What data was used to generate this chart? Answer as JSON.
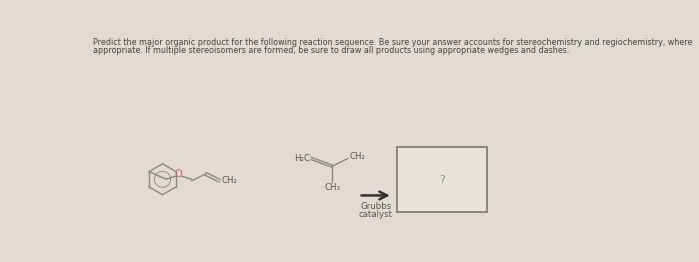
{
  "bg_color": "#e3dbd2",
  "text_color": "#555555",
  "title_line1": "Predict the major organic product for the following reaction sequence. Be sure your answer accounts for stereochemistry and regiochemistry, where",
  "title_line2": "appropriate. If multiple stereoisomers are formed, be sure to draw all products using appropriate wedges and dashes.",
  "question_mark": "?",
  "grubbs_line1": "Grubbs",
  "grubbs_line2": "catalyst",
  "box_color": "#777777",
  "arrow_color": "#333333",
  "mol_color": "#888888",
  "o_color": "#cc6666",
  "title_fontsize": 5.8,
  "mol_lw": 1.0
}
